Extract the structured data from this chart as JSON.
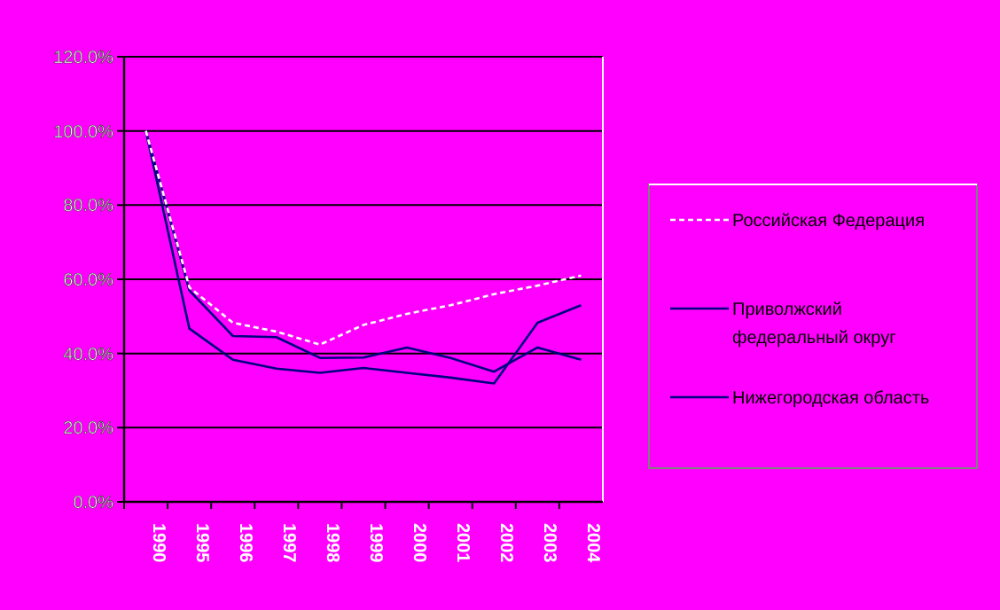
{
  "chart_data": {
    "type": "line",
    "categories": [
      "1990",
      "1995",
      "1996",
      "1997",
      "1998",
      "1999",
      "2000",
      "2001",
      "2002",
      "2003",
      "2004"
    ],
    "series": [
      {
        "name": "Российская Федерация",
        "color": "#ffffff",
        "line_style": "dashed",
        "values": [
          100,
          57.8,
          48.3,
          45.9,
          42.4,
          47.7,
          50.7,
          53,
          56,
          58.3,
          61
        ]
      },
      {
        "name": "Приволжский федеральный округ",
        "color": "#000080",
        "values": [
          100,
          57,
          44.7,
          44.4,
          38.8,
          38.9,
          41.6,
          38.8,
          35.1,
          41.6,
          38.3
        ]
      },
      {
        "name": "Нижегородская область",
        "color": "#000080",
        "values": [
          100,
          46.7,
          38.3,
          35.9,
          34.8,
          36.1,
          34.8,
          33.5,
          31.9,
          48.3,
          53
        ]
      }
    ],
    "ylim": [
      0,
      120
    ],
    "yticks": [
      {
        "value": 0,
        "label": "0.0%"
      },
      {
        "value": 20,
        "label": "20.0%"
      },
      {
        "value": 40,
        "label": "40.0%"
      },
      {
        "value": 60,
        "label": "60.0%"
      },
      {
        "value": 80,
        "label": "80.0%"
      },
      {
        "value": 100,
        "label": "100.0%"
      },
      {
        "value": 120,
        "label": "120.0%"
      }
    ],
    "grid": "y",
    "legend": "right",
    "marker": "none"
  }
}
